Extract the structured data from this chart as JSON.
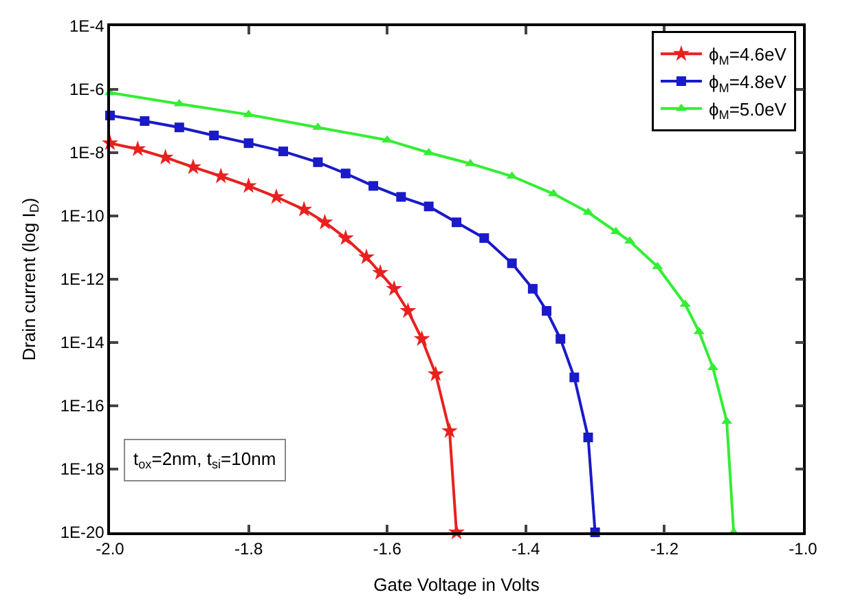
{
  "chart_data": {
    "type": "line",
    "xlabel": "Gate Voltage in Volts",
    "ylabel": "Drain current (log I$_{D}$)",
    "log": "y",
    "legend": "top right",
    "line_style": "solid",
    "xlim": [
      -2.0,
      -1.0
    ],
    "xticks": [
      {
        "value": -2.0,
        "label": "-2.0"
      },
      {
        "value": -1.8,
        "label": "-1.8"
      },
      {
        "value": -1.6,
        "label": "-1.6"
      },
      {
        "value": -1.4,
        "label": "-1.4"
      },
      {
        "value": -1.2,
        "label": "-1.2"
      },
      {
        "value": -1.0,
        "label": "-1.0"
      }
    ],
    "ylim": [
      1e-20,
      0.0001
    ],
    "yticks": [
      {
        "value": 1e-20,
        "label": "1E-20"
      },
      {
        "value": 1e-18,
        "label": "1E-18"
      },
      {
        "value": 1e-16,
        "label": "1E-16"
      },
      {
        "value": 1e-14,
        "label": "1E-14"
      },
      {
        "value": 1e-12,
        "label": "1E-12"
      },
      {
        "value": 1e-10,
        "label": "1E-10"
      },
      {
        "value": 1e-08,
        "label": "1E-8"
      },
      {
        "value": 1e-06,
        "label": "1E-6"
      },
      {
        "value": 0.0001,
        "label": "1E-4"
      }
    ],
    "annotations": [
      "t$_{ox}$=2nm, t$_{si}$=10nm"
    ],
    "series": [
      {
        "name": "ϕ$_{M}$=4.6eV",
        "color": "#e8211f",
        "marker": "star",
        "x": [
          -2.0,
          -1.96,
          -1.92,
          -1.88,
          -1.84,
          -1.8,
          -1.76,
          -1.72,
          -1.69,
          -1.66,
          -1.63,
          -1.61,
          -1.59,
          -1.57,
          -1.55,
          -1.53,
          -1.51,
          -1.5
        ],
        "values": [
          2e-08,
          1.3e-08,
          7.1e-09,
          3.5e-09,
          1.8e-09,
          8.9e-10,
          4e-10,
          1.6e-10,
          6.3e-11,
          2e-11,
          5e-12,
          1.6e-12,
          5e-13,
          1e-13,
          1.3e-14,
          1e-15,
          1.6e-17,
          1e-20
        ]
      },
      {
        "name": "ϕ$_{M}$=4.8eV",
        "color": "#1a1ac8",
        "marker": "square",
        "x": [
          -2.0,
          -1.95,
          -1.9,
          -1.85,
          -1.8,
          -1.75,
          -1.7,
          -1.66,
          -1.62,
          -1.58,
          -1.54,
          -1.5,
          -1.46,
          -1.42,
          -1.39,
          -1.37,
          -1.35,
          -1.33,
          -1.31,
          -1.3
        ],
        "values": [
          1.5e-07,
          1e-07,
          6.3e-08,
          3.5e-08,
          2e-08,
          1.1e-08,
          5e-09,
          2.2e-09,
          8.9e-10,
          4e-10,
          2e-10,
          6.3e-11,
          2e-11,
          3.2e-12,
          5e-13,
          1e-13,
          1.3e-14,
          7.9e-16,
          1e-17,
          1e-20
        ]
      },
      {
        "name": "ϕ$_{M}$=5.0eV",
        "color": "#33ee33",
        "marker": "triangle",
        "x": [
          -2.0,
          -1.9,
          -1.8,
          -1.7,
          -1.6,
          -1.54,
          -1.48,
          -1.42,
          -1.36,
          -1.31,
          -1.27,
          -1.25,
          -1.21,
          -1.17,
          -1.15,
          -1.13,
          -1.11,
          -1.1
        ],
        "values": [
          7.9e-07,
          3.5e-07,
          1.6e-07,
          6.3e-08,
          2.5e-08,
          1e-08,
          4.5e-09,
          1.8e-09,
          5e-10,
          1.3e-10,
          3.2e-11,
          1.6e-11,
          2.5e-12,
          1.6e-13,
          2.2e-14,
          1.6e-15,
          3.2e-17,
          1e-20
        ]
      }
    ]
  }
}
